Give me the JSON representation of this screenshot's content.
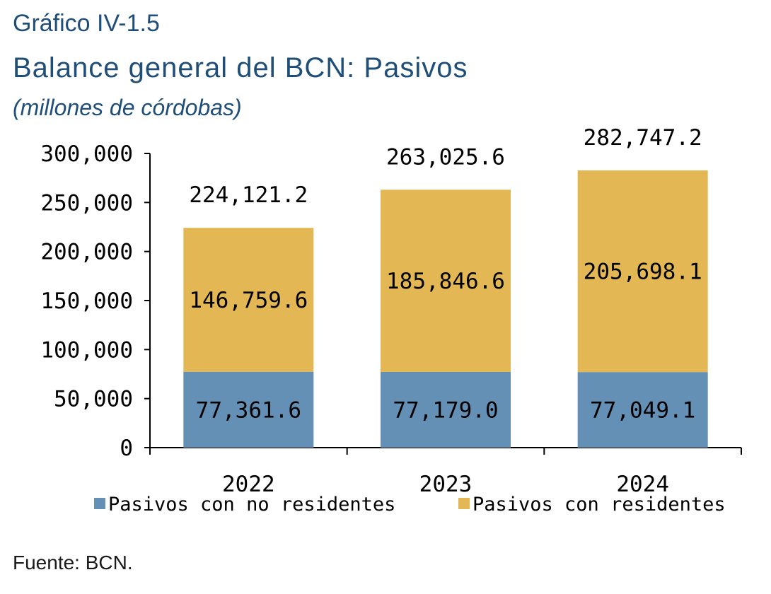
{
  "header": {
    "label": "Gráfico IV-1.5",
    "title": "Balance general del BCN: Pasivos",
    "subtitle": "(millones de córdobas)"
  },
  "source": "Fuente: BCN.",
  "chart_data": {
    "type": "bar",
    "stacked": true,
    "categories": [
      "2022",
      "2023",
      "2024"
    ],
    "series": [
      {
        "name": "Pasivos con no residentes",
        "values": [
          77361.6,
          77179.0,
          77049.1
        ],
        "labels": [
          "77,361.6",
          "77,179.0",
          "77,049.1"
        ],
        "color": "#6590b5"
      },
      {
        "name": "Pasivos con residentes",
        "values": [
          146759.6,
          185846.6,
          205698.1
        ],
        "labels": [
          "146,759.6",
          "185,846.6",
          "205,698.1"
        ],
        "color": "#e3b854"
      }
    ],
    "totals": [
      224121.2,
      263025.6,
      282747.2
    ],
    "total_labels": [
      "224,121.2",
      "263,025.6",
      "282,747.2"
    ],
    "ylim": [
      0,
      300000
    ],
    "yticks": [
      0,
      50000,
      100000,
      150000,
      200000,
      250000,
      300000
    ],
    "ytick_labels": [
      "0",
      "50,000",
      "100,000",
      "150,000",
      "200,000",
      "250,000",
      "300,000"
    ],
    "legend_position": "bottom",
    "grid": false
  }
}
